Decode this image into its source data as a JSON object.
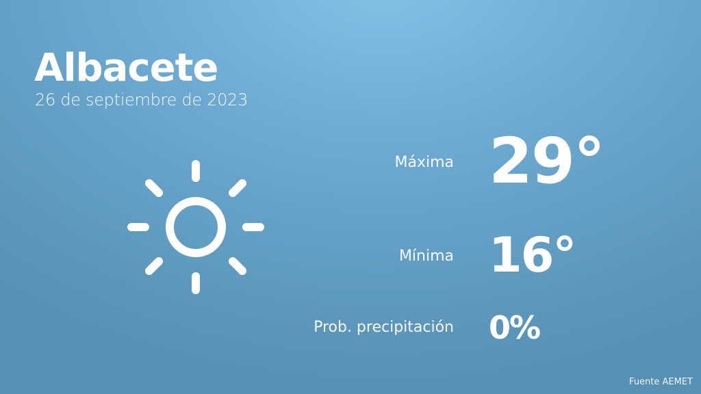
{
  "city": "Albacete",
  "date": "26 de septiembre de 2023",
  "icon": "sun-icon",
  "rows": [
    {
      "label": "Máxima",
      "value": "29°"
    },
    {
      "label": "Mínima",
      "value": "16°"
    },
    {
      "label": "Prob. precipitación",
      "value": "0%"
    }
  ],
  "source": "Fuente AEMET",
  "colors": {
    "background_top": "#84c3e6",
    "background_bottom": "#5690b2",
    "text": "#ffffff"
  }
}
